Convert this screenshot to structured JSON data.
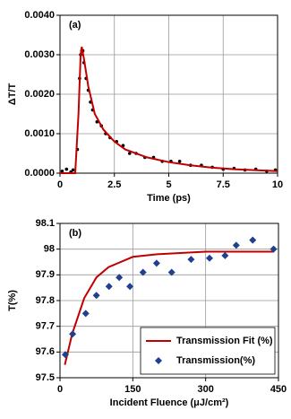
{
  "chart_data": [
    {
      "type": "scatter",
      "label": "(a)",
      "xlabel": "Time (ps)",
      "ylabel": "ΔT/T",
      "xlim": [
        0,
        10
      ],
      "xticks": [
        0,
        2.5,
        5,
        7.5,
        10
      ],
      "ylim": [
        0,
        0.004
      ],
      "yticks": [
        {
          "value": 0,
          "label": "0.0000"
        },
        {
          "value": 0.001,
          "label": "0.0010"
        },
        {
          "value": 0.002,
          "label": "0.0020"
        },
        {
          "value": 0.003,
          "label": "0.0030"
        },
        {
          "value": 0.004,
          "label": "0.0040"
        }
      ],
      "grid": true,
      "series": [
        {
          "style": "markers",
          "marker": "dot",
          "color": "#000000",
          "x": [
            0.1,
            0.3,
            0.5,
            0.6,
            0.8,
            0.9,
            0.95,
            1.0,
            1.05,
            1.1,
            1.2,
            1.3,
            1.4,
            1.5,
            1.7,
            1.9,
            2.1,
            2.3,
            2.6,
            2.9,
            3.2,
            3.5,
            3.9,
            4.3,
            4.7,
            5.1,
            5.5,
            6.0,
            6.5,
            7.0,
            7.5,
            8.0,
            8.5,
            9.0,
            9.5,
            9.9
          ],
          "values": [
            5e-05,
            0.0001,
            3e-05,
            8e-05,
            0.0006,
            0.0024,
            0.003,
            0.0031,
            0.0031,
            0.0028,
            0.0024,
            0.0021,
            0.0018,
            0.0016,
            0.0013,
            0.0012,
            0.001,
            0.0009,
            0.0008,
            0.0007,
            0.0005,
            0.0005,
            0.0004,
            0.0004,
            0.0003,
            0.0003,
            0.0003,
            0.0002,
            0.0002,
            0.00015,
            0.0001,
            0.00012,
            8e-05,
            0.0001,
            5e-05,
            8e-05
          ]
        },
        {
          "style": "line",
          "color": "#c00000",
          "x": [
            0,
            0.7,
            0.85,
            0.95,
            1.0,
            1.1,
            1.3,
            1.6,
            2,
            2.5,
            3,
            4,
            5,
            6,
            7,
            8,
            10
          ],
          "values": [
            0,
            0,
            0.0015,
            0.003,
            0.0032,
            0.0029,
            0.0022,
            0.0015,
            0.0011,
            0.0008,
            0.0006,
            0.0004,
            0.00028,
            0.0002,
            0.00014,
            0.0001,
            5e-05
          ]
        }
      ]
    },
    {
      "type": "scatter",
      "label": "(b)",
      "xlabel": "Incident Fluence (μJ/cm²)",
      "ylabel": "T(%)",
      "xlim": [
        0,
        450
      ],
      "xticks": [
        0,
        150,
        300,
        450
      ],
      "ylim": [
        97.5,
        98.1
      ],
      "yticks": [
        97.5,
        97.6,
        97.7,
        97.8,
        97.9,
        98,
        98.1
      ],
      "grid": true,
      "legend": "lower-right",
      "series": [
        {
          "name": "Transmission Fit (%)",
          "style": "line",
          "color": "#c00000",
          "x": [
            10,
            25,
            50,
            75,
            100,
            150,
            200,
            300,
            440
          ],
          "values": [
            97.55,
            97.67,
            97.81,
            97.89,
            97.93,
            97.97,
            97.98,
            97.99,
            97.99
          ]
        },
        {
          "name": "Transmission(%)",
          "style": "markers",
          "marker": "diamond",
          "color": "#1f3f8f",
          "x": [
            11,
            26,
            53,
            75,
            101,
            122,
            144,
            171,
            199,
            230,
            270,
            308,
            340,
            363,
            397,
            440
          ],
          "values": [
            97.59,
            97.67,
            97.75,
            97.82,
            97.855,
            97.89,
            97.855,
            97.91,
            97.945,
            97.91,
            97.96,
            97.965,
            97.975,
            98.015,
            98.035,
            98.0
          ]
        }
      ]
    }
  ]
}
